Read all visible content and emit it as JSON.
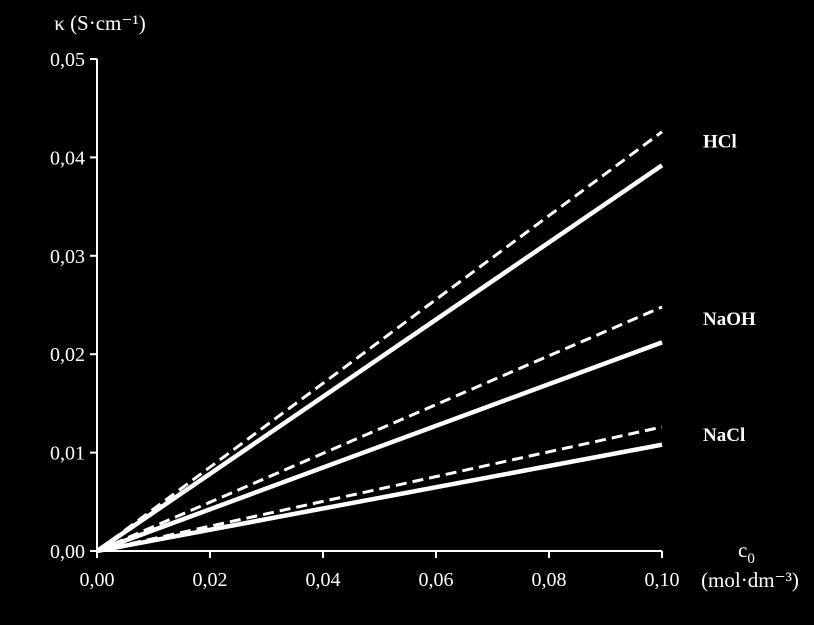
{
  "colors": {
    "background": "#000000",
    "foreground": "#ffffff"
  },
  "chart_data": {
    "type": "line",
    "title": "",
    "ylabel": "κ (S·cm⁻¹)",
    "xlabel_main": "c",
    "xlabel_sub": "0",
    "xlabel_unit": "(mol·dm⁻³)",
    "xlim": [
      0,
      0.1
    ],
    "ylim": [
      0,
      0.05
    ],
    "x_ticks": [
      0,
      0.02,
      0.04,
      0.06,
      0.08,
      0.1
    ],
    "x_tick_labels": [
      "0,00",
      "0,02",
      "0,04",
      "0,06",
      "0,08",
      "0,10"
    ],
    "y_ticks": [
      0,
      0.01,
      0.02,
      0.03,
      0.04,
      0.05
    ],
    "y_tick_labels": [
      "0,00",
      "0,01",
      "0,02",
      "0,03",
      "0,04",
      "0,05"
    ],
    "grid": false,
    "series": [
      {
        "name": "HCl",
        "style": "dashed",
        "x": [
          0,
          0.1
        ],
        "y": [
          0,
          0.0426
        ]
      },
      {
        "name": "HCl",
        "style": "solid",
        "x": [
          0,
          0.1
        ],
        "y": [
          0,
          0.0392
        ]
      },
      {
        "name": "NaOH",
        "style": "dashed",
        "x": [
          0,
          0.1
        ],
        "y": [
          0,
          0.0248
        ]
      },
      {
        "name": "NaOH",
        "style": "solid",
        "x": [
          0,
          0.1
        ],
        "y": [
          0,
          0.0212
        ]
      },
      {
        "name": "NaCl",
        "style": "dashed",
        "x": [
          0,
          0.1
        ],
        "y": [
          0,
          0.0126
        ]
      },
      {
        "name": "NaCl",
        "style": "solid",
        "x": [
          0,
          0.1
        ],
        "y": [
          0,
          0.0108
        ]
      }
    ],
    "series_labels": [
      {
        "text": "HCl",
        "y": 0.0417
      },
      {
        "text": "NaOH",
        "y": 0.0237
      },
      {
        "text": "NaCl",
        "y": 0.0119
      }
    ]
  }
}
